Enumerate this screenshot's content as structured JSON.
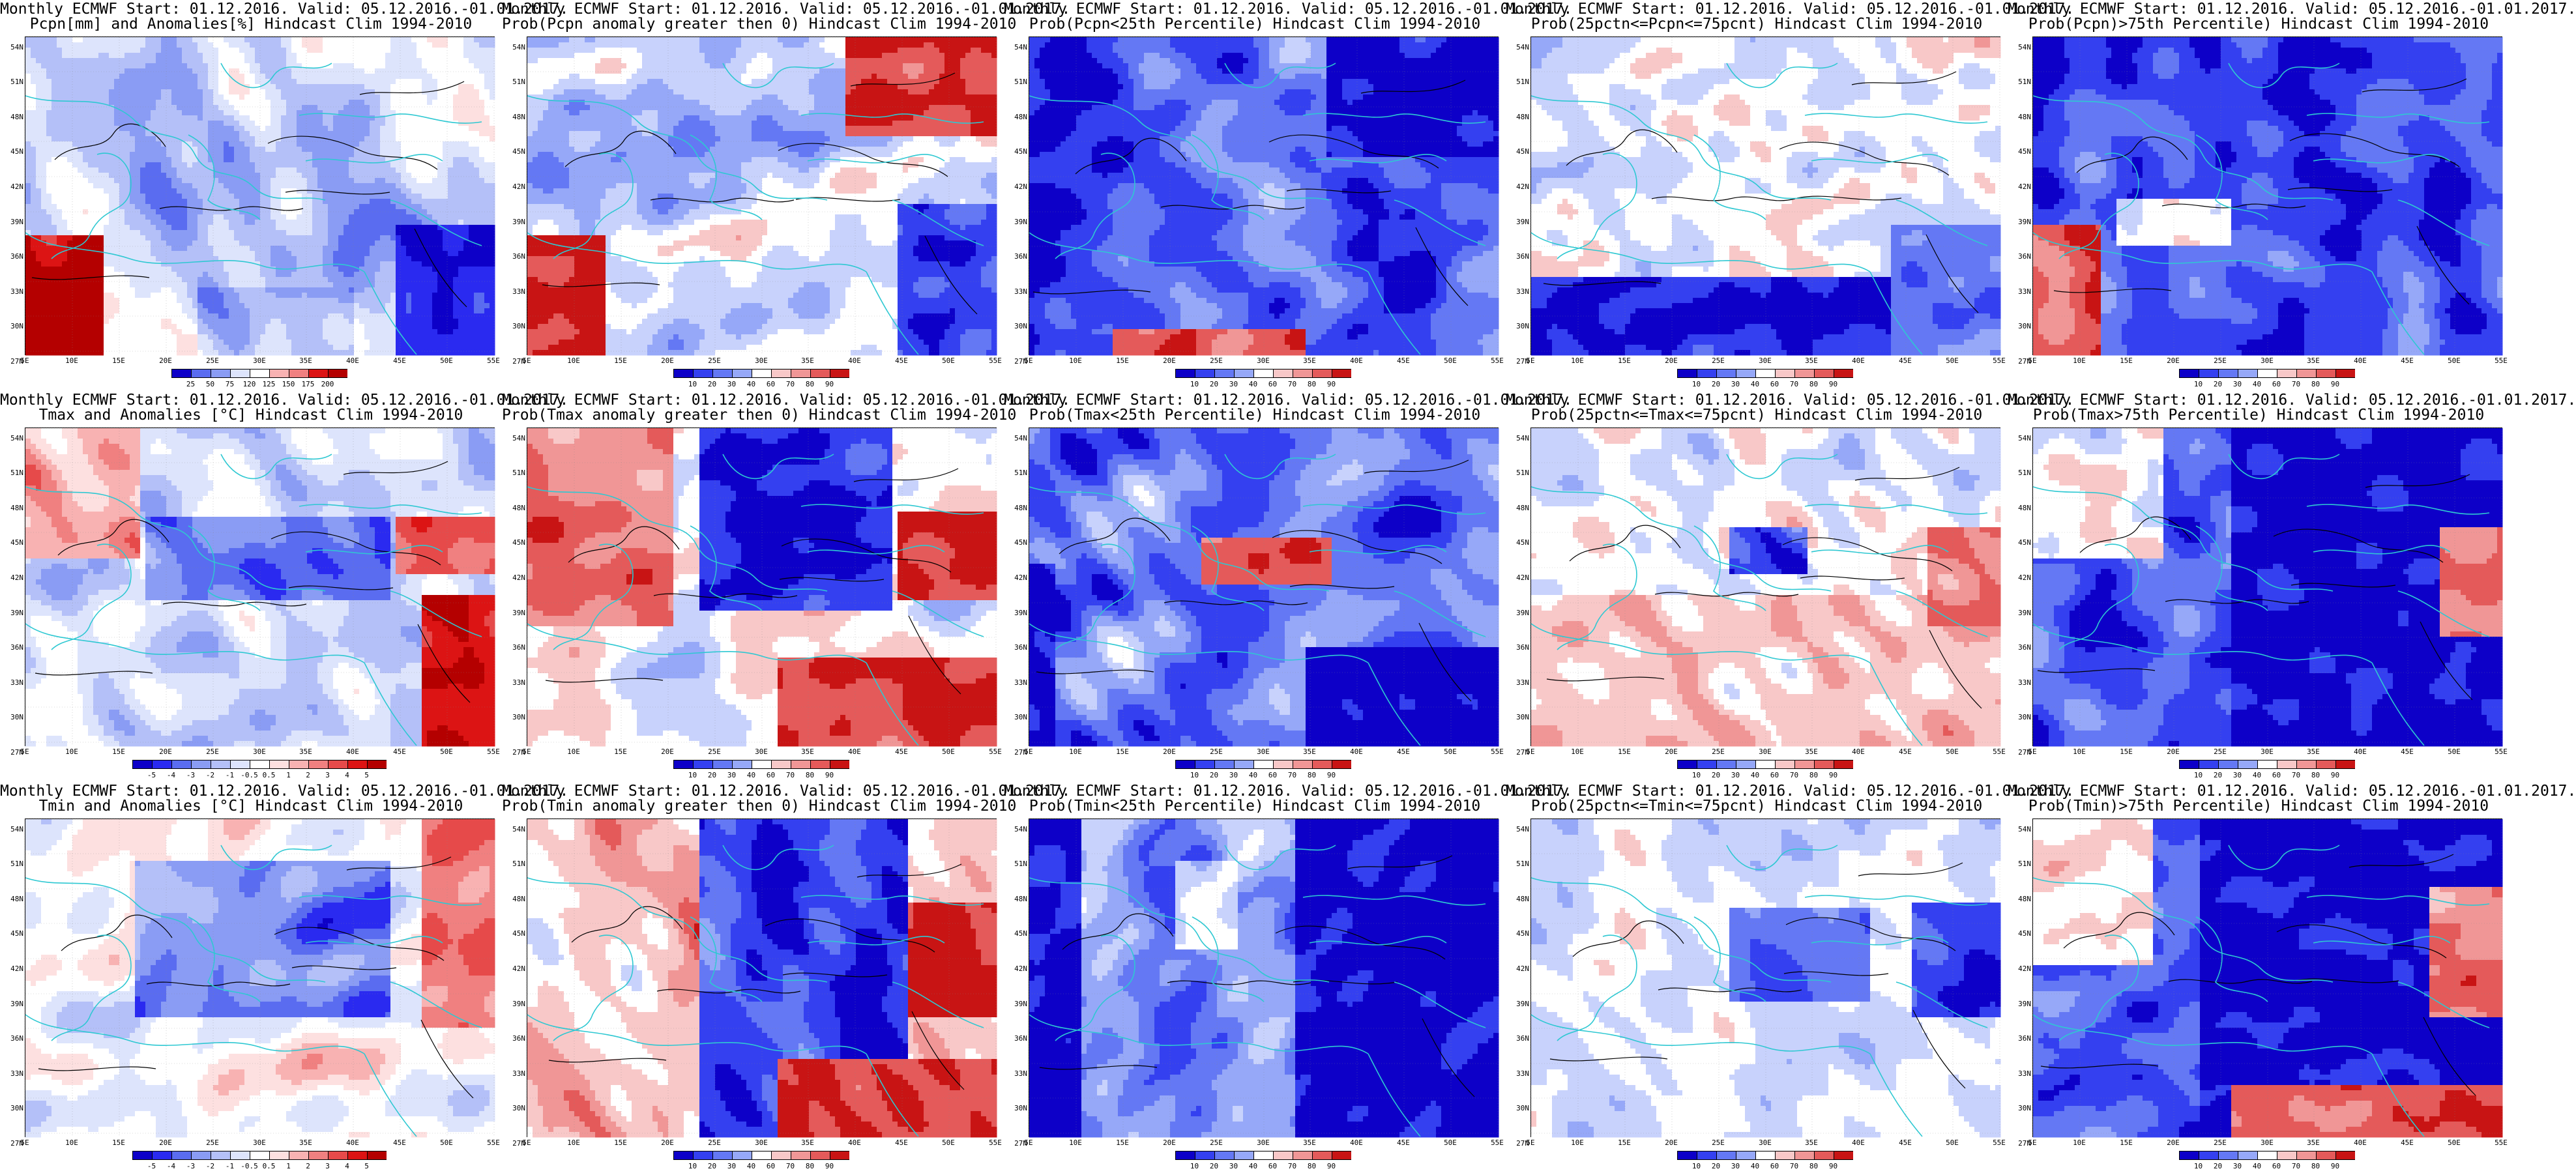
{
  "panels": [
    {
      "t1": "Monthly ECMWF Start: 01.12.2016. Valid: 05.12.2016.-01.01.2017.",
      "t2": "Pcpn[mm] and Anomalies[%] Hindcast Clim 1994-2010",
      "scale": "anom",
      "kind": "pcpn_anom",
      "labels": [
        "25",
        "50",
        "75",
        "120",
        "125",
        "150",
        "175",
        "200"
      ]
    },
    {
      "t1": "Monthly ECMWF Start: 01.12.2016. Valid: 05.12.2016.-01.01.2017.",
      "t2": "Prob(Pcpn anomaly greater then 0) Hindcast Clim 1994-2010",
      "scale": "prob",
      "kind": "pcpn_gt0",
      "labels": [
        "10",
        "20",
        "30",
        "40",
        "60",
        "70",
        "80",
        "90"
      ]
    },
    {
      "t1": "Monthly ECMWF Start: 01.12.2016. Valid: 05.12.2016.-01.01.2017.",
      "t2": "Prob(Pcpn<25th Percentile) Hindcast Clim 1994-2010",
      "scale": "prob",
      "kind": "pcpn_lt25",
      "labels": [
        "10",
        "20",
        "30",
        "40",
        "60",
        "70",
        "80",
        "90"
      ]
    },
    {
      "t1": "Monthly ECMWF Start: 01.12.2016. Valid: 05.12.2016.-01.01.2017.",
      "t2": "Prob(25pctn<=Pcpn<=75pcnt) Hindcast Clim 1994-2010",
      "scale": "prob",
      "kind": "pcpn_mid",
      "labels": [
        "10",
        "20",
        "30",
        "40",
        "60",
        "70",
        "80",
        "90"
      ]
    },
    {
      "t1": "Monthly ECMWF Start: 01.12.2016. Valid: 05.12.2016.-01.01.2017.",
      "t2": "Prob(Pcpn)>75th Percentile) Hindcast Clim 1994-2010",
      "scale": "prob",
      "kind": "pcpn_gt75",
      "labels": [
        "10",
        "20",
        "30",
        "40",
        "60",
        "70",
        "80",
        "90"
      ]
    },
    {
      "t1": "Monthly ECMWF Start: 01.12.2016. Valid: 05.12.2016.-01.01.2017.",
      "t2": "Tmax and Anomalies [°C] Hindcast Clim 1994-2010",
      "scale": "anom",
      "kind": "tmax_anom",
      "labels": [
        "-5",
        "-4",
        "-3",
        "-2",
        "-1",
        "-0.5",
        "0.5",
        "1",
        "2",
        "3",
        "4",
        "5"
      ]
    },
    {
      "t1": "Monthly ECMWF Start: 01.12.2016. Valid: 05.12.2016.-01.01.2017.",
      "t2": "Prob(Tmax anomaly greater then 0) Hindcast Clim 1994-2010",
      "scale": "prob",
      "kind": "tmax_gt0",
      "labels": [
        "10",
        "20",
        "30",
        "40",
        "60",
        "70",
        "80",
        "90"
      ]
    },
    {
      "t1": "Monthly ECMWF Start: 01.12.2016. Valid: 05.12.2016.-01.01.2017.",
      "t2": "Prob(Tmax<25th Percentile) Hindcast Clim 1994-2010",
      "scale": "prob",
      "kind": "tmax_lt25",
      "labels": [
        "10",
        "20",
        "30",
        "40",
        "60",
        "70",
        "80",
        "90"
      ]
    },
    {
      "t1": "Monthly ECMWF Start: 01.12.2016. Valid: 05.12.2016.-01.01.2017.",
      "t2": "Prob(25pctn<=Tmax<=75pcnt) Hindcast Clim 1994-2010",
      "scale": "prob",
      "kind": "tmax_mid",
      "labels": [
        "10",
        "20",
        "30",
        "40",
        "60",
        "70",
        "80",
        "90"
      ]
    },
    {
      "t1": "Monthly ECMWF Start: 01.12.2016. Valid: 05.12.2016.-01.01.2017.",
      "t2": "Prob(Tmax>75th Percentile) Hindcast Clim 1994-2010",
      "scale": "prob",
      "kind": "tmax_gt75",
      "labels": [
        "10",
        "20",
        "30",
        "40",
        "60",
        "70",
        "80",
        "90"
      ]
    },
    {
      "t1": "Monthly ECMWF Start: 01.12.2016. Valid: 05.12.2016.-01.01.2017.",
      "t2": "Tmin and Anomalies [°C] Hindcast Clim 1994-2010",
      "scale": "anom",
      "kind": "tmin_anom",
      "labels": [
        "-5",
        "-4",
        "-3",
        "-2",
        "-1",
        "-0.5",
        "0.5",
        "1",
        "2",
        "3",
        "4",
        "5"
      ]
    },
    {
      "t1": "Monthly ECMWF Start: 01.12.2016. Valid: 05.12.2016.-01.01.2017.",
      "t2": "Prob(Tmin anomaly greater then 0) Hindcast Clim 1994-2010",
      "scale": "prob",
      "kind": "tmin_gt0",
      "labels": [
        "10",
        "20",
        "30",
        "40",
        "60",
        "70",
        "80",
        "90"
      ]
    },
    {
      "t1": "Monthly ECMWF Start: 01.12.2016. Valid: 05.12.2016.-01.01.2017.",
      "t2": "Prob(Tmin<25th Percentile) Hindcast Clim 1994-2010",
      "scale": "prob",
      "kind": "tmin_lt25",
      "labels": [
        "10",
        "20",
        "30",
        "40",
        "60",
        "70",
        "80",
        "90"
      ]
    },
    {
      "t1": "Monthly ECMWF Start: 01.12.2016. Valid: 05.12.2016.-01.01.2017.",
      "t2": "Prob(25pctn<=Tmin<=75pcnt) Hindcast Clim 1994-2010",
      "scale": "prob",
      "kind": "tmin_mid",
      "labels": [
        "10",
        "20",
        "30",
        "40",
        "60",
        "70",
        "80",
        "90"
      ]
    },
    {
      "t1": "Monthly ECMWF Start: 01.12.2016. Valid: 05.12.2016.-01.01.2017.",
      "t2": "Prob(Tmin)>75th Percentile) Hindcast Clim 1994-2010",
      "scale": "prob",
      "kind": "tmin_gt75",
      "labels": [
        "10",
        "20",
        "30",
        "40",
        "60",
        "70",
        "80",
        "90"
      ]
    }
  ],
  "lat_labels": [
    "54N",
    "51N",
    "48N",
    "45N",
    "42N",
    "39N",
    "36N",
    "33N",
    "30N",
    "27N"
  ],
  "lon_labels": [
    "5E",
    "10E",
    "15E",
    "20E",
    "25E",
    "30E",
    "35E",
    "40E",
    "45E",
    "50E",
    "55E"
  ],
  "colors": {
    "anom": [
      "#0d00c8",
      "#2a2af0",
      "#5a6cf0",
      "#8a9cf4",
      "#b4c0f8",
      "#dde4fc",
      "#ffffff",
      "#fde0e0",
      "#f8b2b2",
      "#f08080",
      "#e64a4a",
      "#dc1414",
      "#b40000"
    ],
    "prob": [
      "#0d00c8",
      "#3440f0",
      "#6478f4",
      "#96a8f8",
      "#c8d2fc",
      "#ffffff",
      "#f8c8c8",
      "#f09696",
      "#e45a5a",
      "#c81414"
    ],
    "coast": "#2ec8d2",
    "contour": "#000000"
  }
}
